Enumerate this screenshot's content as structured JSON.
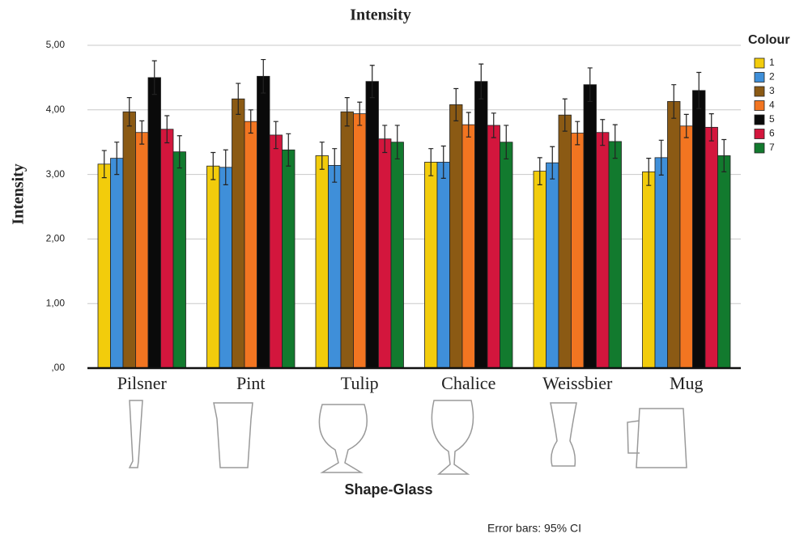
{
  "chart_data": {
    "type": "bar",
    "title": "Intensity",
    "y_label": "Intensity",
    "x_label": "Shape-Glass",
    "legend_title": "Colour",
    "note": "Error bars: 95% CI",
    "categories": [
      "Pilsner",
      "Pint",
      "Tulip",
      "Chalice",
      "Weissbier",
      "Mug"
    ],
    "series": [
      {
        "name": "1",
        "color": "#f2cc0c",
        "values": [
          3.16,
          3.13,
          3.29,
          3.19,
          3.05,
          3.04
        ],
        "errors": [
          0.21,
          0.21,
          0.21,
          0.21,
          0.21,
          0.21
        ]
      },
      {
        "name": "2",
        "color": "#3f8fd9",
        "values": [
          3.25,
          3.11,
          3.14,
          3.19,
          3.18,
          3.26
        ],
        "errors": [
          0.25,
          0.27,
          0.26,
          0.25,
          0.25,
          0.27
        ]
      },
      {
        "name": "3",
        "color": "#8b5a14",
        "values": [
          3.97,
          4.17,
          3.97,
          4.08,
          3.92,
          4.13
        ],
        "errors": [
          0.22,
          0.24,
          0.22,
          0.25,
          0.25,
          0.26
        ]
      },
      {
        "name": "4",
        "color": "#f27521",
        "values": [
          3.65,
          3.82,
          3.94,
          3.77,
          3.64,
          3.75
        ],
        "errors": [
          0.18,
          0.18,
          0.18,
          0.19,
          0.18,
          0.18
        ]
      },
      {
        "name": "5",
        "color": "#0a0a0a",
        "values": [
          4.5,
          4.52,
          4.44,
          4.44,
          4.39,
          4.3
        ],
        "errors": [
          0.26,
          0.26,
          0.25,
          0.27,
          0.26,
          0.28
        ]
      },
      {
        "name": "6",
        "color": "#d3163d",
        "values": [
          3.7,
          3.61,
          3.55,
          3.76,
          3.65,
          3.73
        ],
        "errors": [
          0.21,
          0.21,
          0.21,
          0.19,
          0.2,
          0.21
        ]
      },
      {
        "name": "7",
        "color": "#127a2e",
        "values": [
          3.35,
          3.38,
          3.5,
          3.5,
          3.51,
          3.29
        ],
        "errors": [
          0.25,
          0.25,
          0.26,
          0.26,
          0.26,
          0.25
        ]
      }
    ],
    "ylim": [
      0,
      5
    ],
    "yticks": [
      {
        "value": 0,
        "label": ",00"
      },
      {
        "value": 1,
        "label": "1,00"
      },
      {
        "value": 2,
        "label": "2,00"
      },
      {
        "value": 3,
        "label": "3,00"
      },
      {
        "value": 4,
        "label": "4,00"
      },
      {
        "value": 5,
        "label": "5,00"
      }
    ],
    "grid": true,
    "legend": "right"
  }
}
